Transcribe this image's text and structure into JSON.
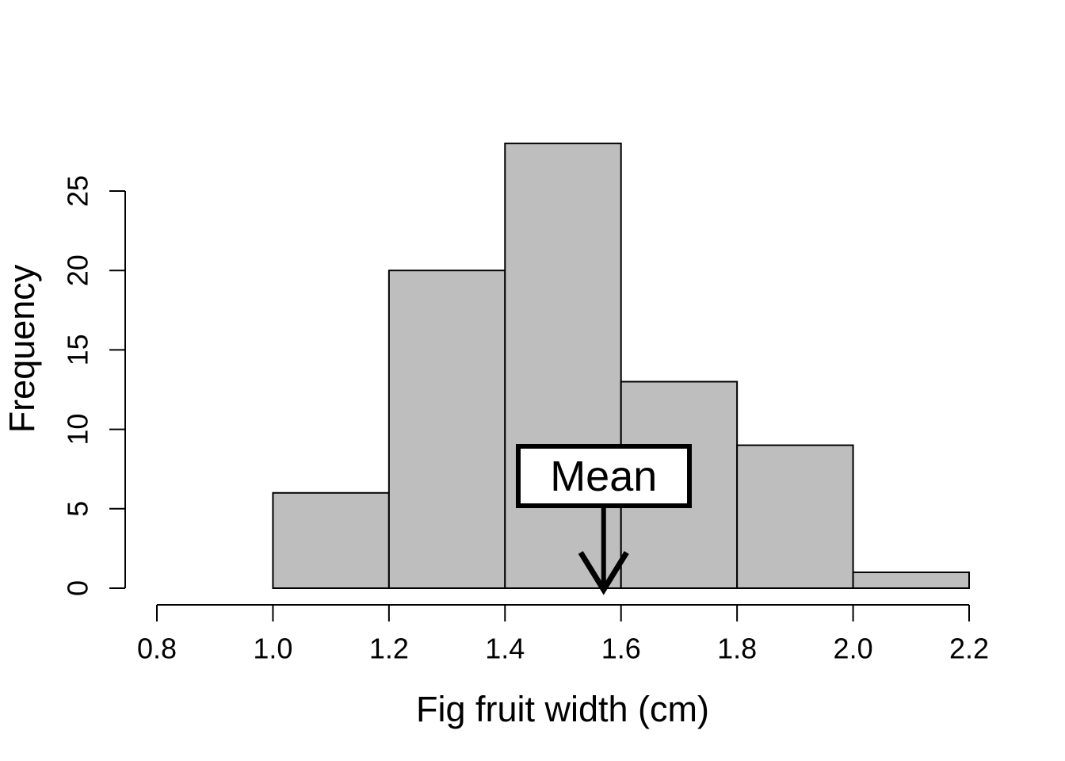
{
  "figure": {
    "xlabel": "Fig fruit width (cm)",
    "ylabel": "Frequency"
  },
  "colors": {
    "background": "#FFFFFF",
    "bar_fill": "#BEBEBE",
    "bar_border": "#000000",
    "axis": "#000000",
    "text": "#000000",
    "annotation_box_fill": "#FFFFFF",
    "annotation_box_border": "#000000"
  },
  "chart_data": {
    "type": "bar",
    "subtype": "histogram",
    "title": "",
    "xlabel": "Fig fruit width (cm)",
    "ylabel": "Frequency",
    "bin_edges": [
      1.0,
      1.2,
      1.4,
      1.6,
      1.8,
      2.0,
      2.2
    ],
    "counts": [
      6,
      20,
      28,
      13,
      9,
      1
    ],
    "xlim": [
      0.8,
      2.2
    ],
    "ylim": [
      0,
      25
    ],
    "x_ticks": [
      0.8,
      1.0,
      1.2,
      1.4,
      1.6,
      1.8,
      2.0,
      2.2
    ],
    "x_tick_labels": [
      "0.8",
      "1.0",
      "1.2",
      "1.4",
      "1.6",
      "1.8",
      "2.0",
      "2.2"
    ],
    "y_ticks": [
      0,
      5,
      10,
      15,
      20,
      25
    ],
    "y_tick_labels": [
      "0",
      "5",
      "10",
      "15",
      "20",
      "25"
    ],
    "grid": false,
    "legend": null,
    "annotation": {
      "label": "Mean",
      "x": 1.57,
      "arrow_points_to_y": 0
    }
  }
}
